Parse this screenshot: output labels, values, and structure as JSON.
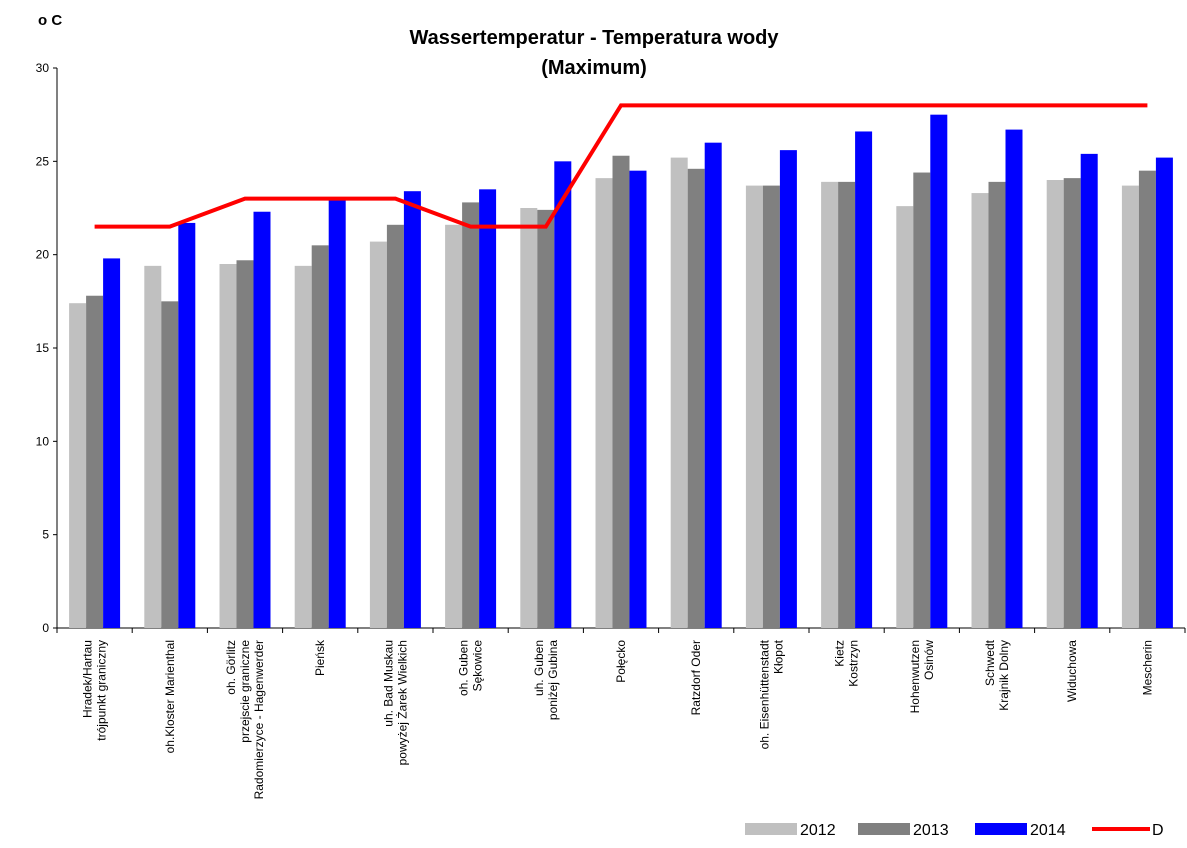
{
  "chart_data": {
    "type": "bar",
    "title": "Wassertemperatur - Temperatura wody",
    "subtitle": "(Maximum)",
    "y_label": "o C",
    "categories": [
      [
        "Hradek/Hartau",
        "trójpunkt graniczny"
      ],
      [
        "oh.Kloster Marienthal"
      ],
      [
        "oh. Görlitz",
        "przejscie graniczne",
        "Radomierzyce - Hagenwerder"
      ],
      [
        "Pieńsk"
      ],
      [
        "uh. Bad Muskau",
        "powyżej Żarek Wielkich"
      ],
      [
        "oh. Guben",
        "Sękowice"
      ],
      [
        "uh. Guben",
        "poniżej Gubina"
      ],
      [
        "Połęcko"
      ],
      [
        "Ratzdorf Oder"
      ],
      [
        "oh. Eisenhüttenstadt",
        "Kłopot"
      ],
      [
        "Kietz",
        "Kostrzyn"
      ],
      [
        "Hohenwutzen",
        "Osinów"
      ],
      [
        "Schwedt",
        "Krajnik Dolny"
      ],
      [
        "Widuchowa"
      ],
      [
        "Mescherin"
      ]
    ],
    "series": [
      {
        "name": "2012",
        "color": "#c0c0c0",
        "values": [
          17.4,
          19.4,
          19.5,
          19.4,
          20.7,
          21.6,
          22.5,
          24.1,
          25.2,
          23.7,
          23.9,
          22.6,
          23.3,
          24.0,
          23.7
        ]
      },
      {
        "name": "2013",
        "color": "#808080",
        "values": [
          17.8,
          17.5,
          19.7,
          20.5,
          21.6,
          22.8,
          22.4,
          25.3,
          24.6,
          23.7,
          23.9,
          24.4,
          23.9,
          24.1,
          24.5
        ]
      },
      {
        "name": "2014",
        "color": "#0000ff",
        "values": [
          19.8,
          21.7,
          22.3,
          23.0,
          23.4,
          23.5,
          25.0,
          24.5,
          26.0,
          25.6,
          26.6,
          27.5,
          26.7,
          25.4,
          25.2
        ]
      },
      {
        "name": "D",
        "color": "#ff0000",
        "type": "line",
        "values": [
          21.5,
          21.5,
          23,
          23,
          23,
          21.5,
          21.5,
          28,
          28,
          28,
          28,
          28,
          28,
          28,
          28
        ]
      }
    ],
    "ylim": [
      0,
      30
    ],
    "yticks": [
      0,
      5,
      10,
      15,
      20,
      25,
      30
    ]
  }
}
